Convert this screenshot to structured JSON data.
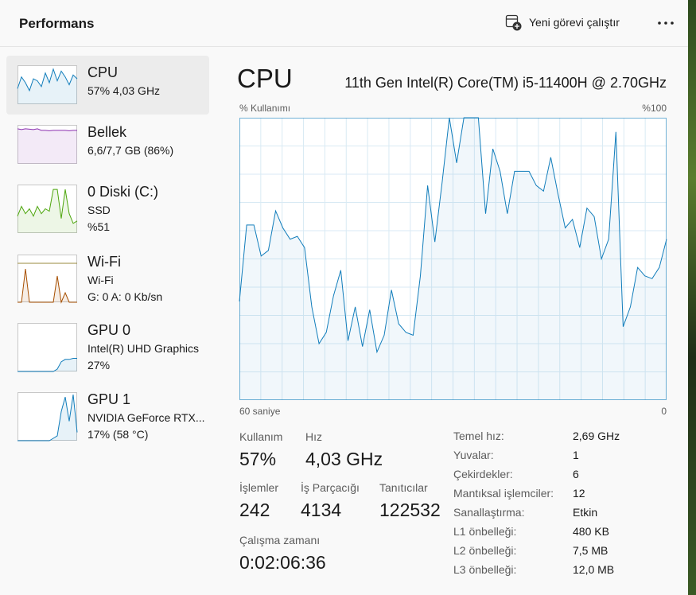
{
  "header": {
    "title": "Performans",
    "run_task": "Yeni görevi çalıştır"
  },
  "sidebar": [
    {
      "title": "CPU",
      "lines": [
        "57%  4,03 GHz"
      ],
      "color": "#117dbb",
      "history": [
        40,
        70,
        55,
        35,
        65,
        60,
        45,
        80,
        55,
        90,
        60,
        85,
        70,
        50,
        75,
        65
      ]
    },
    {
      "title": "Bellek",
      "lines": [
        "6,6/7,7 GB (86%)"
      ],
      "color": "#8b2fb0",
      "history": [
        90,
        88,
        90,
        89,
        88,
        90,
        86,
        86,
        85,
        86,
        86,
        86,
        86,
        85,
        86,
        86
      ]
    },
    {
      "title": "0 Diski (C:)",
      "lines": [
        "SSD",
        "%51"
      ],
      "color": "#4da60c",
      "history": [
        35,
        55,
        40,
        50,
        35,
        55,
        40,
        50,
        45,
        90,
        90,
        30,
        90,
        40,
        20,
        25
      ]
    },
    {
      "title": "Wi-Fi",
      "lines": [
        "Wi-Fi",
        "G: 0 A: 0 Kb/sn"
      ],
      "color": "#a74f01",
      "history": [
        0,
        0,
        70,
        0,
        0,
        0,
        0,
        0,
        0,
        0,
        55,
        0,
        20,
        0,
        0,
        0
      ]
    },
    {
      "title": "GPU 0",
      "lines": [
        "Intel(R) UHD Graphics",
        "27%"
      ],
      "color": "#117dbb",
      "history": [
        0,
        0,
        0,
        0,
        0,
        0,
        0,
        0,
        0,
        0,
        5,
        20,
        25,
        25,
        27,
        27
      ]
    },
    {
      "title": "GPU 1",
      "lines": [
        "NVIDIA GeForce RTX...",
        "17% (58 °C)"
      ],
      "color": "#117dbb",
      "history": [
        0,
        0,
        0,
        0,
        0,
        0,
        0,
        0,
        0,
        5,
        10,
        60,
        90,
        40,
        95,
        17
      ]
    }
  ],
  "detail": {
    "title": "CPU",
    "model": "11th Gen Intel(R) Core(TM) i5-11400H @ 2.70GHz",
    "graph": {
      "y_label": "% Kullanımı",
      "y_max_label": "%100",
      "x_left_label": "60 saniye",
      "x_right_label": "0",
      "ylim": [
        0,
        100
      ],
      "color": "#117dbb",
      "values": [
        35,
        62,
        62,
        51,
        53,
        67,
        61,
        57,
        58,
        54,
        33,
        20,
        24,
        37,
        46,
        21,
        33,
        19,
        32,
        17,
        23,
        39,
        27,
        24,
        23,
        44,
        76,
        56,
        77,
        100,
        84,
        100,
        100,
        100,
        66,
        89,
        81,
        66,
        81,
        81,
        81,
        76,
        74,
        86,
        73,
        61,
        64,
        54,
        68,
        65,
        50,
        57,
        95,
        26,
        33,
        47,
        44,
        43,
        47,
        57
      ]
    },
    "stats": [
      {
        "label": "Kullanım",
        "value": "57%"
      },
      {
        "label": "Hız",
        "value": "4,03 GHz"
      },
      {
        "label": "İşlemler",
        "value": "242"
      },
      {
        "label": "İş Parçacığı",
        "value": "4134"
      },
      {
        "label": "Tanıtıcılar",
        "value": "122532"
      },
      {
        "label": "Çalışma zamanı",
        "value": "0:02:06:36"
      }
    ],
    "specs": [
      {
        "label": "Temel hız:",
        "value": "2,69 GHz"
      },
      {
        "label": "Yuvalar:",
        "value": "1"
      },
      {
        "label": "Çekirdekler:",
        "value": "6"
      },
      {
        "label": "Mantıksal işlemciler:",
        "value": "12"
      },
      {
        "label": "Sanallaştırma:",
        "value": "Etkin"
      },
      {
        "label": "L1 önbelleği:",
        "value": "480 KB"
      },
      {
        "label": "L2 önbelleği:",
        "value": "7,5 MB"
      },
      {
        "label": "L3 önbelleği:",
        "value": "12,0 MB"
      }
    ]
  }
}
